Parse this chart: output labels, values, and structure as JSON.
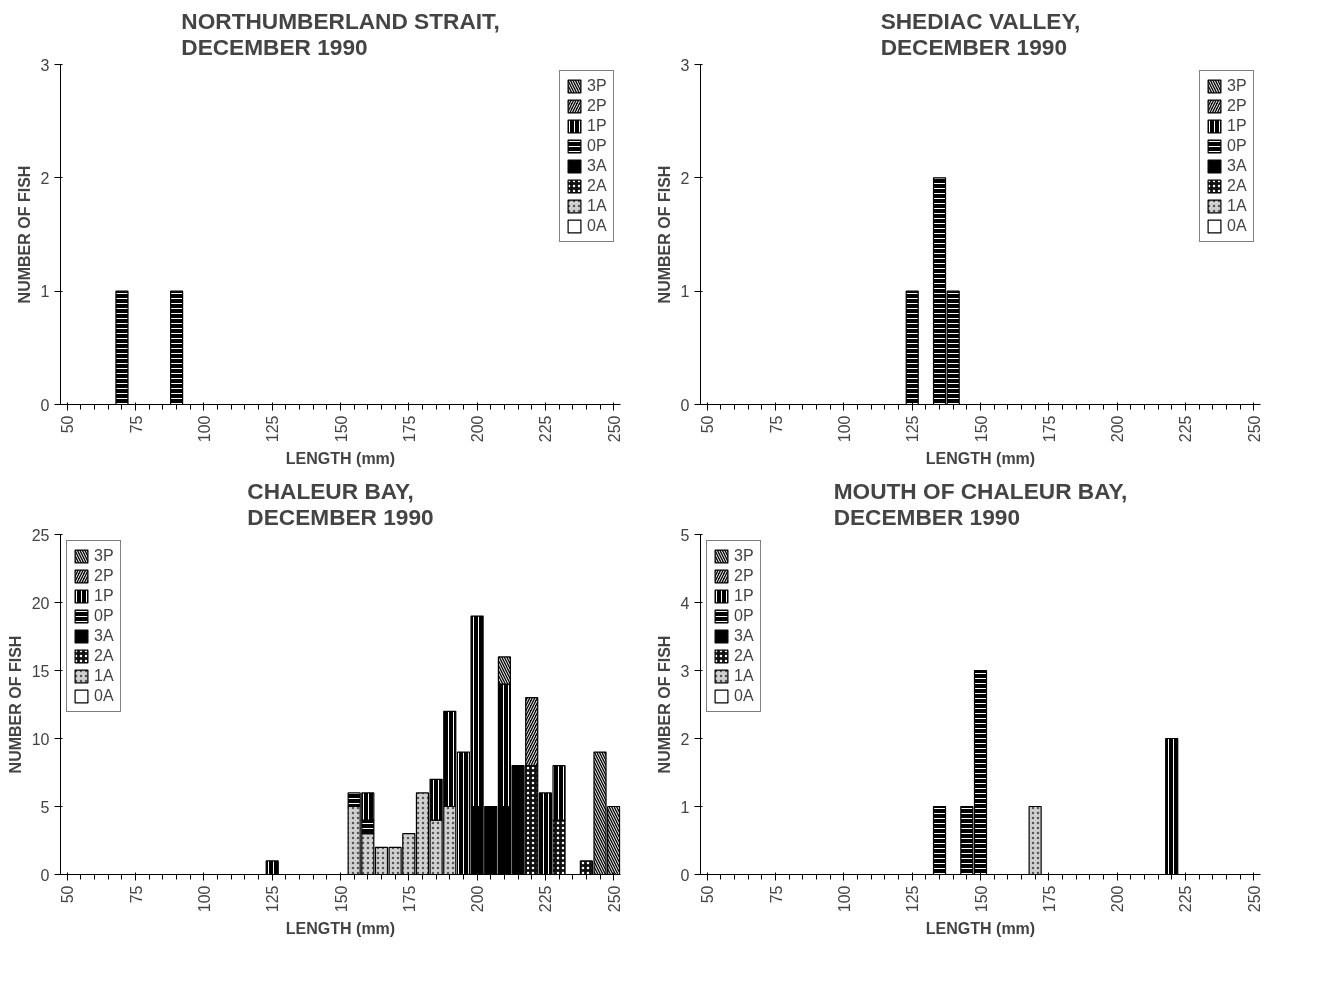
{
  "chart_data": [
    {
      "type": "bar",
      "stacked": true,
      "title": "NORTHUMBERLAND STRAIT,\nDECEMBER 1990",
      "xlabel": "LENGTH (mm)",
      "ylabel": "NUMBER OF FISH",
      "x": [
        70,
        90
      ],
      "xlim": [
        47.5,
        252.5
      ],
      "xticks": [
        50,
        75,
        100,
        125,
        150,
        175,
        200,
        225,
        250
      ],
      "ylim": [
        0,
        3
      ],
      "yticks": [
        0,
        1,
        2,
        3
      ],
      "grid": false,
      "legend": "top right",
      "series": [
        {
          "name": "0A",
          "color": "#ffffff",
          "values": [
            null,
            null
          ]
        },
        {
          "name": "1A",
          "color": "#d0d0d0",
          "values": [
            null,
            null
          ]
        },
        {
          "name": "2A",
          "color": "#111111",
          "values": [
            null,
            null
          ]
        },
        {
          "name": "3A",
          "color": "#000000",
          "values": [
            null,
            null
          ]
        },
        {
          "name": "0P",
          "color": "#000000",
          "values": [
            1,
            1
          ]
        },
        {
          "name": "1P",
          "color": "#000000",
          "values": [
            null,
            null
          ]
        },
        {
          "name": "2P",
          "color": "#000000",
          "values": [
            null,
            null
          ]
        },
        {
          "name": "3P",
          "color": "#000000",
          "values": [
            null,
            null
          ]
        }
      ]
    },
    {
      "type": "bar",
      "stacked": true,
      "title": "SHEDIAC VALLEY,\nDECEMBER 1990",
      "xlabel": "LENGTH (mm)",
      "ylabel": "NUMBER OF FISH",
      "x": [
        125,
        135,
        140
      ],
      "xlim": [
        47.5,
        252.5
      ],
      "xticks": [
        50,
        75,
        100,
        125,
        150,
        175,
        200,
        225,
        250
      ],
      "ylim": [
        0,
        3
      ],
      "yticks": [
        0,
        1,
        2,
        3
      ],
      "grid": false,
      "legend": "top right",
      "series": [
        {
          "name": "0A",
          "color": "#ffffff",
          "values": [
            null,
            null,
            null
          ]
        },
        {
          "name": "1A",
          "color": "#d0d0d0",
          "values": [
            null,
            null,
            null
          ]
        },
        {
          "name": "2A",
          "color": "#111111",
          "values": [
            null,
            null,
            null
          ]
        },
        {
          "name": "3A",
          "color": "#000000",
          "values": [
            null,
            null,
            null
          ]
        },
        {
          "name": "0P",
          "color": "#000000",
          "values": [
            1,
            2,
            1
          ]
        },
        {
          "name": "1P",
          "color": "#000000",
          "values": [
            null,
            null,
            null
          ]
        },
        {
          "name": "2P",
          "color": "#000000",
          "values": [
            null,
            null,
            null
          ]
        },
        {
          "name": "3P",
          "color": "#000000",
          "values": [
            null,
            null,
            null
          ]
        }
      ]
    },
    {
      "type": "bar",
      "stacked": true,
      "title": "CHALEUR BAY,\nDECEMBER 1990",
      "xlabel": "LENGTH (mm)",
      "ylabel": "NUMBER OF FISH",
      "x": [
        125,
        155,
        160,
        165,
        170,
        175,
        180,
        185,
        190,
        195,
        200,
        205,
        210,
        215,
        220,
        225,
        230,
        240,
        245,
        250
      ],
      "xlim": [
        47.5,
        252.5
      ],
      "xticks": [
        50,
        75,
        100,
        125,
        150,
        175,
        200,
        225,
        250
      ],
      "ylim": [
        0,
        25
      ],
      "yticks": [
        0,
        5,
        10,
        15,
        20,
        25
      ],
      "grid": false,
      "legend": "top left",
      "series": [
        {
          "name": "0A",
          "color": "#ffffff",
          "values": [
            null,
            null,
            null,
            null,
            null,
            null,
            null,
            null,
            null,
            null,
            null,
            null,
            null,
            null,
            null,
            null,
            null,
            null,
            null,
            null
          ]
        },
        {
          "name": "1A",
          "color": "#d0d0d0",
          "values": [
            null,
            5,
            3,
            2,
            2,
            3,
            6,
            4,
            5,
            null,
            null,
            null,
            null,
            null,
            null,
            null,
            null,
            null,
            null,
            null
          ]
        },
        {
          "name": "2A",
          "color": "#111111",
          "values": [
            null,
            null,
            null,
            null,
            null,
            null,
            null,
            null,
            null,
            null,
            null,
            null,
            null,
            null,
            8,
            null,
            4,
            1,
            null,
            null
          ]
        },
        {
          "name": "3A",
          "color": "#000000",
          "values": [
            null,
            null,
            null,
            null,
            null,
            null,
            null,
            null,
            null,
            null,
            5,
            5,
            5,
            8,
            null,
            null,
            null,
            null,
            null,
            null
          ]
        },
        {
          "name": "0P",
          "color": "#000000",
          "values": [
            null,
            1,
            1,
            null,
            null,
            null,
            null,
            null,
            null,
            null,
            null,
            null,
            null,
            null,
            null,
            null,
            null,
            null,
            null,
            null
          ]
        },
        {
          "name": "1P",
          "color": "#000000",
          "values": [
            1,
            null,
            2,
            null,
            null,
            null,
            null,
            3,
            7,
            9,
            14,
            null,
            9,
            null,
            null,
            6,
            4,
            null,
            null,
            null
          ]
        },
        {
          "name": "2P",
          "color": "#000000",
          "values": [
            null,
            null,
            null,
            null,
            null,
            null,
            null,
            null,
            null,
            null,
            null,
            null,
            null,
            null,
            5,
            null,
            null,
            null,
            null,
            null
          ]
        },
        {
          "name": "3P",
          "color": "#000000",
          "values": [
            null,
            null,
            null,
            null,
            null,
            null,
            null,
            null,
            null,
            null,
            null,
            null,
            2,
            null,
            null,
            null,
            null,
            null,
            9,
            5
          ]
        }
      ]
    },
    {
      "type": "bar",
      "stacked": true,
      "title": "MOUTH OF CHALEUR BAY,\nDECEMBER 1990",
      "xlabel": "LENGTH (mm)",
      "ylabel": "NUMBER OF FISH",
      "x": [
        135,
        145,
        150,
        170,
        220
      ],
      "xlim": [
        47.5,
        252.5
      ],
      "xticks": [
        50,
        75,
        100,
        125,
        150,
        175,
        200,
        225,
        250
      ],
      "ylim": [
        0,
        5
      ],
      "yticks": [
        0,
        1,
        2,
        3,
        4,
        5
      ],
      "grid": false,
      "legend": "top left",
      "series": [
        {
          "name": "0A",
          "color": "#ffffff",
          "values": [
            null,
            null,
            null,
            null,
            null
          ]
        },
        {
          "name": "1A",
          "color": "#d0d0d0",
          "values": [
            null,
            null,
            null,
            1,
            null
          ]
        },
        {
          "name": "2A",
          "color": "#111111",
          "values": [
            null,
            null,
            null,
            null,
            null
          ]
        },
        {
          "name": "3A",
          "color": "#000000",
          "values": [
            null,
            null,
            null,
            null,
            null
          ]
        },
        {
          "name": "0P",
          "color": "#000000",
          "values": [
            1,
            1,
            3,
            null,
            null
          ]
        },
        {
          "name": "1P",
          "color": "#000000",
          "values": [
            null,
            null,
            null,
            null,
            2
          ]
        },
        {
          "name": "2P",
          "color": "#000000",
          "values": [
            null,
            null,
            null,
            null,
            null
          ]
        },
        {
          "name": "3P",
          "color": "#000000",
          "values": [
            null,
            null,
            null,
            null,
            null
          ]
        }
      ]
    }
  ]
}
